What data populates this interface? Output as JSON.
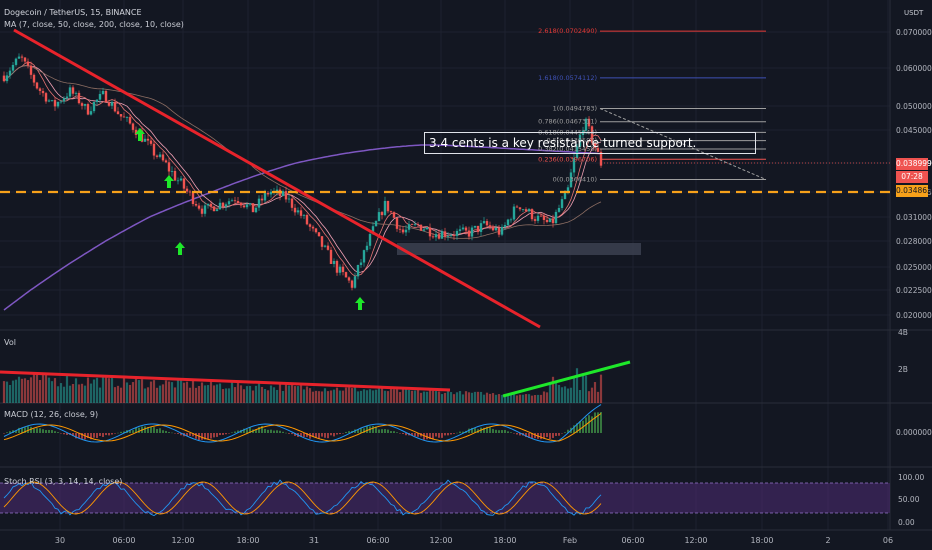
{
  "header": {
    "symbol_title": "Dogecoin / TetherUS, 15, BINANCE",
    "ma_label": "MA (7, close, 50, close, 200, close, 10, close)",
    "vol_label": "Vol",
    "macd_label": "MACD (12, 26, close, 9)",
    "stoch_label": "Stoch RSI (3, 3, 14, 14, close)",
    "currency_label": "USDT"
  },
  "annotation": "3.4 cents is a key resistance turned support.",
  "price_badges": {
    "current_price": "0.0389992",
    "countdown": "07:28",
    "support_level": "0.0348633"
  },
  "colors": {
    "background": "#131722",
    "grid": "#1e2230",
    "up_candle": "#26a69a",
    "down_candle": "#ef5350",
    "trendline": "#e8232b",
    "support_dash": "#f7a11a",
    "ma_long": "#7e57c2",
    "arrow": "#1ee82a",
    "volume_uptrend": "#1ee82a"
  },
  "chart_data": [
    {
      "type": "candlestick",
      "title": "Dogecoin / TetherUS, 15, BINANCE",
      "y_axis_labels": [
        "0.0700000",
        "0.0600000",
        "0.0500000",
        "0.0450000",
        "0.0389992",
        "0.0348633",
        "0.0310000",
        "0.0280000",
        "0.0250000",
        "0.0225000",
        "0.0200000"
      ],
      "x_axis_labels": [
        "30",
        "06:00",
        "12:00",
        "18:00",
        "31",
        "06:00",
        "12:00",
        "18:00",
        "Feb",
        "06:00",
        "12:00",
        "18:00",
        "2",
        "06"
      ],
      "approx_close_series": [
        0.058,
        0.063,
        0.055,
        0.05,
        0.054,
        0.049,
        0.053,
        0.048,
        0.045,
        0.041,
        0.038,
        0.035,
        0.032,
        0.033,
        0.034,
        0.032,
        0.035,
        0.034,
        0.031,
        0.028,
        0.025,
        0.023,
        0.028,
        0.033,
        0.029,
        0.03,
        0.029,
        0.029,
        0.029,
        0.03,
        0.029,
        0.033,
        0.031,
        0.03,
        0.035,
        0.047,
        0.039
      ],
      "fibonacci_levels": [
        {
          "ratio": "2.618",
          "label": "2.618(0.0702490)",
          "value": 0.070249
        },
        {
          "ratio": "1.618",
          "label": "1.618(0.0574112)",
          "value": 0.0574112
        },
        {
          "ratio": "1",
          "label": "1(0.0494783)",
          "value": 0.0494783
        },
        {
          "ratio": "0.786",
          "label": "0.786(0.0467311)",
          "value": 0.0467311
        },
        {
          "ratio": "0.618",
          "label": "0.618(0.0445744)",
          "value": 0.0445744
        },
        {
          "ratio": "0.5",
          "label": "0.5(0.0430597)",
          "value": 0.0430597
        },
        {
          "ratio": "0.382",
          "label": "0.382(0.0415450)",
          "value": 0.041545
        },
        {
          "ratio": "0.236",
          "label": "0.236(0.0396706)",
          "value": 0.0396706
        },
        {
          "ratio": "0",
          "label": "0(0.0366410)",
          "value": 0.036641
        }
      ],
      "support_level": 0.0348633,
      "current_price": 0.0389992
    },
    {
      "type": "bar",
      "title": "Vol",
      "y_axis_labels": [
        "4B",
        "2B"
      ]
    },
    {
      "type": "line",
      "title": "MACD (12, 26, close, 9)",
      "y_axis_labels": [
        "0.0000000"
      ]
    },
    {
      "type": "line",
      "title": "Stoch RSI (3, 3, 14, 14, close)",
      "y_axis_labels": [
        "100.00",
        "50.00",
        "0.00"
      ]
    }
  ]
}
